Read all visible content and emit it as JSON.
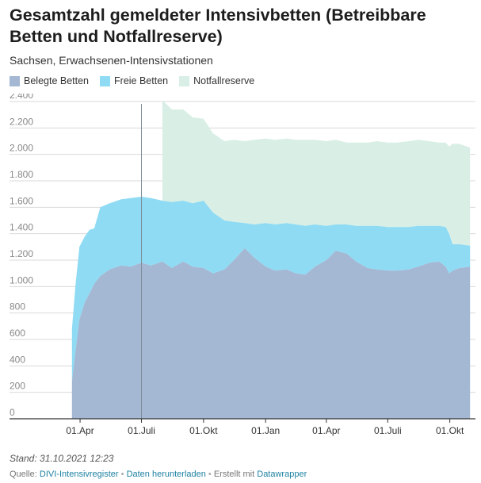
{
  "title": "Gesamtzahl gemeldeter Intensivbetten (Betreibbare Betten und Notfallreserve)",
  "subtitle": "Sachsen, Erwachsenen-Intensivstationen",
  "colors": {
    "belegt": "#a4b7d3",
    "frei": "#8fdbf4",
    "reserve": "#d9efe5",
    "grid": "#d9d9d9",
    "axis": "#333333",
    "marker": "#7f8b98"
  },
  "chart_data": {
    "type": "area",
    "stacked": true,
    "ylim": [
      0,
      2400
    ],
    "yticks": [
      0,
      200,
      400,
      600,
      800,
      1000,
      1200,
      1400,
      1600,
      1800,
      2000,
      2200,
      2400
    ],
    "ytick_labels": [
      "0",
      "200",
      "400",
      "600",
      "800",
      "1.000",
      "1.200",
      "1.400",
      "1.600",
      "1.800",
      "2.000",
      "2.200",
      "2.400"
    ],
    "xticks": [
      {
        "date": "2020-04-01",
        "label": "01.Apr"
      },
      {
        "date": "2020-07-01",
        "label": "01.Juli"
      },
      {
        "date": "2020-10-01",
        "label": "01.Okt"
      },
      {
        "date": "2021-01-01",
        "label": "01.Jan"
      },
      {
        "date": "2021-04-01",
        "label": "01.Apr"
      },
      {
        "date": "2021-07-01",
        "label": "01.Juli"
      },
      {
        "date": "2021-10-01",
        "label": "01.Okt"
      }
    ],
    "x_range": [
      "2020-01-25",
      "2021-11-08"
    ],
    "marker_line": "2020-07-01",
    "legend_position": "top-left",
    "legend": [
      "Belegte Betten",
      "Freie Betten",
      "Notfallreserve"
    ],
    "series": [
      {
        "name": "Belegte Betten",
        "points": [
          [
            "2020-03-20",
            280
          ],
          [
            "2020-03-25",
            500
          ],
          [
            "2020-03-31",
            750
          ],
          [
            "2020-04-08",
            880
          ],
          [
            "2020-04-15",
            950
          ],
          [
            "2020-04-22",
            1020
          ],
          [
            "2020-05-01",
            1080
          ],
          [
            "2020-05-15",
            1130
          ],
          [
            "2020-06-01",
            1160
          ],
          [
            "2020-06-15",
            1150
          ],
          [
            "2020-07-01",
            1180
          ],
          [
            "2020-07-15",
            1160
          ],
          [
            "2020-08-01",
            1190
          ],
          [
            "2020-08-15",
            1140
          ],
          [
            "2020-09-01",
            1190
          ],
          [
            "2020-09-15",
            1150
          ],
          [
            "2020-10-01",
            1140
          ],
          [
            "2020-10-15",
            1100
          ],
          [
            "2020-11-01",
            1130
          ],
          [
            "2020-11-15",
            1200
          ],
          [
            "2020-12-01",
            1290
          ],
          [
            "2020-12-15",
            1220
          ],
          [
            "2021-01-01",
            1150
          ],
          [
            "2021-01-15",
            1120
          ],
          [
            "2021-02-01",
            1130
          ],
          [
            "2021-02-15",
            1100
          ],
          [
            "2021-03-01",
            1090
          ],
          [
            "2021-03-15",
            1150
          ],
          [
            "2021-04-01",
            1200
          ],
          [
            "2021-04-15",
            1270
          ],
          [
            "2021-05-01",
            1250
          ],
          [
            "2021-05-15",
            1190
          ],
          [
            "2021-06-01",
            1140
          ],
          [
            "2021-06-15",
            1130
          ],
          [
            "2021-07-01",
            1120
          ],
          [
            "2021-07-15",
            1120
          ],
          [
            "2021-08-01",
            1130
          ],
          [
            "2021-08-15",
            1150
          ],
          [
            "2021-09-01",
            1180
          ],
          [
            "2021-09-15",
            1190
          ],
          [
            "2021-09-25",
            1150
          ],
          [
            "2021-09-30",
            1100
          ],
          [
            "2021-10-05",
            1120
          ],
          [
            "2021-10-15",
            1140
          ],
          [
            "2021-10-31",
            1150
          ]
        ]
      },
      {
        "name": "Freie Betten",
        "points": [
          [
            "2020-03-20",
            400
          ],
          [
            "2020-03-25",
            500
          ],
          [
            "2020-03-31",
            550
          ],
          [
            "2020-04-08",
            500
          ],
          [
            "2020-04-15",
            480
          ],
          [
            "2020-04-22",
            420
          ],
          [
            "2020-05-01",
            520
          ],
          [
            "2020-05-15",
            500
          ],
          [
            "2020-06-01",
            500
          ],
          [
            "2020-06-15",
            520
          ],
          [
            "2020-07-01",
            500
          ],
          [
            "2020-07-15",
            510
          ],
          [
            "2020-08-01",
            460
          ],
          [
            "2020-08-15",
            500
          ],
          [
            "2020-09-01",
            460
          ],
          [
            "2020-09-15",
            480
          ],
          [
            "2020-10-01",
            510
          ],
          [
            "2020-10-15",
            460
          ],
          [
            "2020-11-01",
            370
          ],
          [
            "2020-11-15",
            290
          ],
          [
            "2020-12-01",
            190
          ],
          [
            "2020-12-15",
            250
          ],
          [
            "2021-01-01",
            330
          ],
          [
            "2021-01-15",
            350
          ],
          [
            "2021-02-01",
            350
          ],
          [
            "2021-02-15",
            370
          ],
          [
            "2021-03-01",
            370
          ],
          [
            "2021-03-15",
            320
          ],
          [
            "2021-04-01",
            260
          ],
          [
            "2021-04-15",
            200
          ],
          [
            "2021-05-01",
            220
          ],
          [
            "2021-05-15",
            270
          ],
          [
            "2021-06-01",
            320
          ],
          [
            "2021-06-15",
            330
          ],
          [
            "2021-07-01",
            330
          ],
          [
            "2021-07-15",
            330
          ],
          [
            "2021-08-01",
            320
          ],
          [
            "2021-08-15",
            310
          ],
          [
            "2021-09-01",
            280
          ],
          [
            "2021-09-15",
            270
          ],
          [
            "2021-09-25",
            300
          ],
          [
            "2021-09-30",
            300
          ],
          [
            "2021-10-05",
            200
          ],
          [
            "2021-10-15",
            180
          ],
          [
            "2021-10-31",
            160
          ]
        ]
      },
      {
        "name": "Notfallreserve",
        "points": [
          [
            "2020-08-01",
            760
          ],
          [
            "2020-08-15",
            700
          ],
          [
            "2020-09-01",
            690
          ],
          [
            "2020-09-15",
            650
          ],
          [
            "2020-10-01",
            620
          ],
          [
            "2020-10-15",
            600
          ],
          [
            "2020-11-01",
            600
          ],
          [
            "2020-11-15",
            620
          ],
          [
            "2020-12-01",
            620
          ],
          [
            "2020-12-15",
            640
          ],
          [
            "2021-01-01",
            640
          ],
          [
            "2021-01-15",
            640
          ],
          [
            "2021-02-01",
            640
          ],
          [
            "2021-02-15",
            640
          ],
          [
            "2021-03-01",
            650
          ],
          [
            "2021-03-15",
            640
          ],
          [
            "2021-04-01",
            640
          ],
          [
            "2021-04-15",
            640
          ],
          [
            "2021-05-01",
            620
          ],
          [
            "2021-05-15",
            630
          ],
          [
            "2021-06-01",
            630
          ],
          [
            "2021-06-15",
            640
          ],
          [
            "2021-07-01",
            640
          ],
          [
            "2021-07-15",
            640
          ],
          [
            "2021-08-01",
            650
          ],
          [
            "2021-08-15",
            650
          ],
          [
            "2021-09-01",
            640
          ],
          [
            "2021-09-15",
            630
          ],
          [
            "2021-09-25",
            640
          ],
          [
            "2021-09-30",
            660
          ],
          [
            "2021-10-05",
            760
          ],
          [
            "2021-10-15",
            760
          ],
          [
            "2021-10-31",
            740
          ]
        ]
      }
    ]
  },
  "notes": "Stand: 31.10.2021 12:23",
  "footer": {
    "source_label": "Quelle:",
    "source_link": "DIVI-Intensivregister",
    "separator": "•",
    "download": "Daten herunterladen",
    "credit_text": "Erstellt mit",
    "credit_link": "Datawrapper"
  }
}
